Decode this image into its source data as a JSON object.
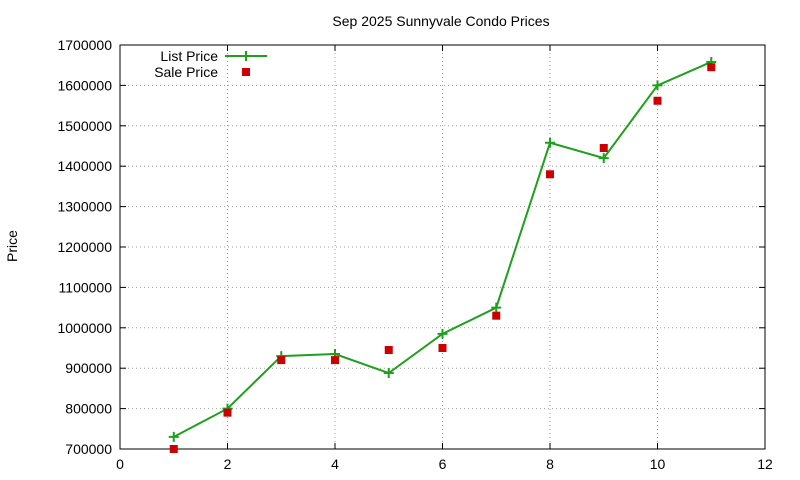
{
  "chart_data": {
    "type": "line",
    "title": "Sep 2025 Sunnyvale Condo Prices",
    "xlabel": "",
    "ylabel": "Price",
    "xlim": [
      0,
      12
    ],
    "ylim": [
      700000,
      1700000
    ],
    "xticks": [
      0,
      2,
      4,
      6,
      8,
      10,
      12
    ],
    "yticks": [
      700000,
      800000,
      900000,
      1000000,
      1100000,
      1200000,
      1300000,
      1400000,
      1500000,
      1600000,
      1700000
    ],
    "grid": true,
    "legend_position": "top-left",
    "series": [
      {
        "name": "List Price",
        "style": "line-with-plus-markers",
        "color": "#1ea01e",
        "x": [
          1,
          2,
          3,
          4,
          5,
          6,
          7,
          8,
          9,
          10,
          11
        ],
        "y": [
          730000,
          800000,
          930000,
          935000,
          888000,
          985000,
          1050000,
          1458000,
          1420000,
          1600000,
          1658000
        ]
      },
      {
        "name": "Sale Price",
        "style": "square-markers",
        "color": "#cc0000",
        "x": [
          1,
          2,
          3,
          4,
          5,
          6,
          7,
          8,
          9,
          10,
          11
        ],
        "y": [
          700000,
          790000,
          920000,
          920000,
          945000,
          950000,
          1030000,
          1380000,
          1445000,
          1562000,
          1645000
        ]
      }
    ]
  }
}
